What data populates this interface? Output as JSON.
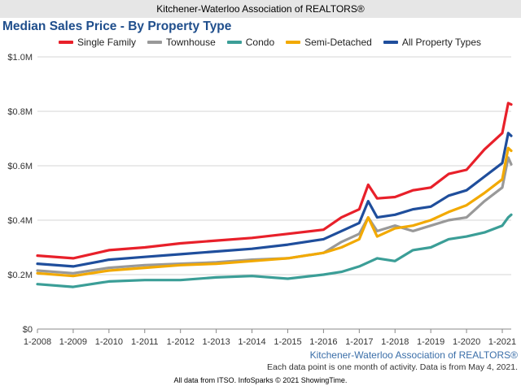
{
  "header": {
    "banner": "Kitchener-Waterloo Association of REALTORS®"
  },
  "colors": {
    "title": "#1f4e8c",
    "grid": "#d6d6d6",
    "credit": "#3a6ea8"
  },
  "chart_data": {
    "type": "line",
    "title": "Median Sales Price - By Property Type",
    "legend_position": "top",
    "grid": true,
    "x_tick_labels": [
      "1-2008",
      "1-2009",
      "1-2010",
      "1-2011",
      "1-2012",
      "1-2013",
      "1-2014",
      "1-2015",
      "1-2016",
      "1-2017",
      "1-2018",
      "1-2019",
      "1-2020",
      "1-2021"
    ],
    "x_range": [
      "2008-01",
      "2021-04"
    ],
    "y_tick_labels": [
      "$0",
      "$0.2M",
      "$0.4M",
      "$0.6M",
      "$0.8M",
      "$1.0M"
    ],
    "ylim": [
      0,
      1000000
    ],
    "series": [
      {
        "name": "Single Family",
        "color": "#e8202a",
        "points": [
          [
            "2008-01",
            270000
          ],
          [
            "2009-01",
            260000
          ],
          [
            "2010-01",
            290000
          ],
          [
            "2011-01",
            300000
          ],
          [
            "2012-01",
            315000
          ],
          [
            "2013-01",
            325000
          ],
          [
            "2014-01",
            335000
          ],
          [
            "2015-01",
            350000
          ],
          [
            "2016-01",
            365000
          ],
          [
            "2016-07",
            410000
          ],
          [
            "2017-01",
            440000
          ],
          [
            "2017-04",
            530000
          ],
          [
            "2017-07",
            480000
          ],
          [
            "2018-01",
            485000
          ],
          [
            "2018-07",
            510000
          ],
          [
            "2019-01",
            520000
          ],
          [
            "2019-07",
            570000
          ],
          [
            "2020-01",
            585000
          ],
          [
            "2020-07",
            660000
          ],
          [
            "2021-01",
            720000
          ],
          [
            "2021-03",
            830000
          ],
          [
            "2021-04",
            825000
          ]
        ]
      },
      {
        "name": "Townhouse",
        "color": "#999999",
        "points": [
          [
            "2008-01",
            215000
          ],
          [
            "2009-01",
            205000
          ],
          [
            "2010-01",
            225000
          ],
          [
            "2011-01",
            235000
          ],
          [
            "2012-01",
            240000
          ],
          [
            "2013-01",
            245000
          ],
          [
            "2014-01",
            255000
          ],
          [
            "2015-01",
            260000
          ],
          [
            "2016-01",
            280000
          ],
          [
            "2016-07",
            320000
          ],
          [
            "2017-01",
            350000
          ],
          [
            "2017-04",
            410000
          ],
          [
            "2017-07",
            360000
          ],
          [
            "2018-01",
            380000
          ],
          [
            "2018-07",
            360000
          ],
          [
            "2019-01",
            380000
          ],
          [
            "2019-07",
            400000
          ],
          [
            "2020-01",
            410000
          ],
          [
            "2020-07",
            470000
          ],
          [
            "2021-01",
            520000
          ],
          [
            "2021-03",
            630000
          ],
          [
            "2021-04",
            605000
          ]
        ]
      },
      {
        "name": "Condo",
        "color": "#3b9e97",
        "points": [
          [
            "2008-01",
            165000
          ],
          [
            "2009-01",
            155000
          ],
          [
            "2010-01",
            175000
          ],
          [
            "2011-01",
            180000
          ],
          [
            "2012-01",
            180000
          ],
          [
            "2013-01",
            190000
          ],
          [
            "2014-01",
            195000
          ],
          [
            "2015-01",
            185000
          ],
          [
            "2016-01",
            200000
          ],
          [
            "2016-07",
            210000
          ],
          [
            "2017-01",
            230000
          ],
          [
            "2017-07",
            260000
          ],
          [
            "2018-01",
            250000
          ],
          [
            "2018-07",
            290000
          ],
          [
            "2019-01",
            300000
          ],
          [
            "2019-07",
            330000
          ],
          [
            "2020-01",
            340000
          ],
          [
            "2020-07",
            355000
          ],
          [
            "2021-01",
            380000
          ],
          [
            "2021-03",
            410000
          ],
          [
            "2021-04",
            420000
          ]
        ]
      },
      {
        "name": "Semi-Detached",
        "color": "#f2a900",
        "points": [
          [
            "2008-01",
            205000
          ],
          [
            "2009-01",
            195000
          ],
          [
            "2010-01",
            215000
          ],
          [
            "2011-01",
            225000
          ],
          [
            "2012-01",
            235000
          ],
          [
            "2013-01",
            240000
          ],
          [
            "2014-01",
            250000
          ],
          [
            "2015-01",
            260000
          ],
          [
            "2016-01",
            280000
          ],
          [
            "2016-07",
            300000
          ],
          [
            "2017-01",
            330000
          ],
          [
            "2017-04",
            410000
          ],
          [
            "2017-07",
            340000
          ],
          [
            "2018-01",
            370000
          ],
          [
            "2018-07",
            380000
          ],
          [
            "2019-01",
            400000
          ],
          [
            "2019-07",
            430000
          ],
          [
            "2020-01",
            455000
          ],
          [
            "2020-07",
            500000
          ],
          [
            "2021-01",
            550000
          ],
          [
            "2021-03",
            665000
          ],
          [
            "2021-04",
            655000
          ]
        ]
      },
      {
        "name": "All Property Types",
        "color": "#1f4e9c",
        "points": [
          [
            "2008-01",
            240000
          ],
          [
            "2009-01",
            230000
          ],
          [
            "2010-01",
            255000
          ],
          [
            "2011-01",
            265000
          ],
          [
            "2012-01",
            275000
          ],
          [
            "2013-01",
            285000
          ],
          [
            "2014-01",
            295000
          ],
          [
            "2015-01",
            310000
          ],
          [
            "2016-01",
            330000
          ],
          [
            "2016-07",
            360000
          ],
          [
            "2017-01",
            390000
          ],
          [
            "2017-04",
            470000
          ],
          [
            "2017-07",
            410000
          ],
          [
            "2018-01",
            420000
          ],
          [
            "2018-07",
            440000
          ],
          [
            "2019-01",
            450000
          ],
          [
            "2019-07",
            490000
          ],
          [
            "2020-01",
            510000
          ],
          [
            "2020-07",
            560000
          ],
          [
            "2021-01",
            610000
          ],
          [
            "2021-03",
            720000
          ],
          [
            "2021-04",
            710000
          ]
        ]
      }
    ]
  },
  "footer": {
    "credit": "Kitchener-Waterloo Association of REALTORS®",
    "note": "Each data point is one month of activity. Data is from May 4, 2021.",
    "source": "All data from ITSO. InfoSparks © 2021 ShowingTime."
  }
}
